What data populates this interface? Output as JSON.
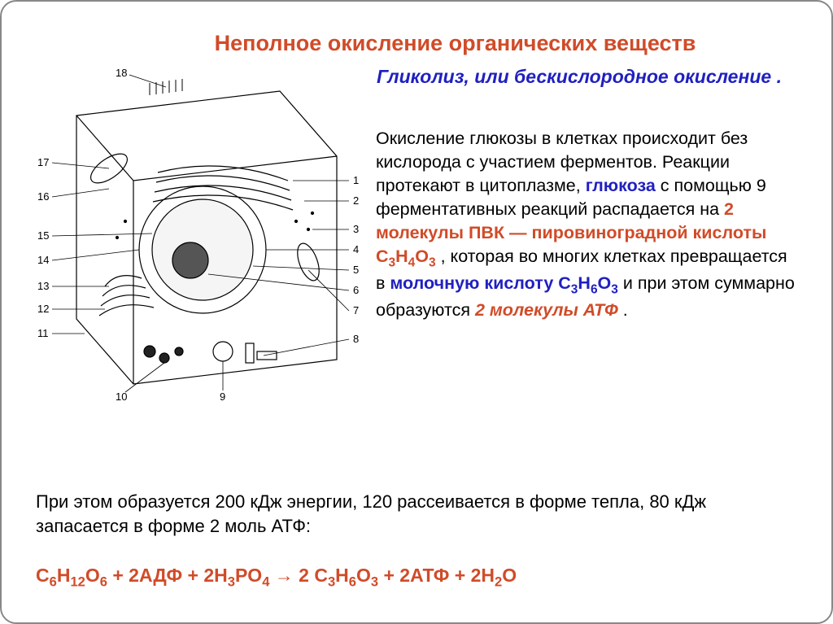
{
  "title": "Неполное окисление органических веществ",
  "subtitle": "Гликолиз, или бескислородное окисление .",
  "body_html": "Окисление глюкозы в клетках происходит без кислорода с участием ферментов. Реакции протекают в цитоплазме, <span class=\"hl-blue\">глюкоза</span> с помощью 9 ферментативных реакций распадается на <span class=\"hl-red\">2 молекулы ПВК — пировиноградной кислоты C<sub>3</sub>H<sub>4</sub>O<sub>3</sub></span> , которая во многих клетках превращается в <span class=\"hl-blue\">молочную кислоту C<sub>3</sub>H<sub>6</sub>O<sub>3</sub></span> и при этом суммарно образуются <span class=\"hl-red-it\">2 молекулы АТФ</span> .",
  "lower_text": "При этом образуется 200 кДж энергии, 120 рассеивается в форме тепла, 80 кДж запасается в форме 2 моль АТФ:",
  "equation_html": "C<sub>6</sub>H<sub>12</sub>O<sub>6</sub> + 2АДФ + 2H<sub>3</sub>PO<sub>4</sub> &rarr; 2 C<sub>3</sub>H<sub>6</sub>O<sub>3</sub> + 2АТФ + 2H<sub>2</sub>O",
  "diagram": {
    "labels": [
      "1",
      "2",
      "3",
      "4",
      "5",
      "6",
      "7",
      "8",
      "9",
      "10",
      "11",
      "12",
      "13",
      "14",
      "15",
      "16",
      "17",
      "18"
    ],
    "stroke": "#000000",
    "fontsize": 12
  }
}
